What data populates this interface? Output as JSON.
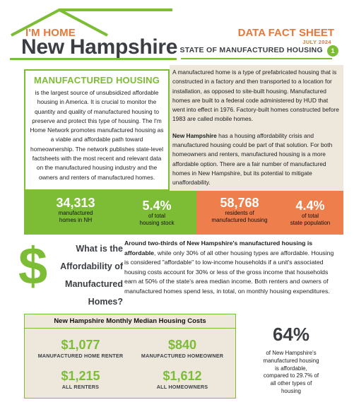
{
  "header": {
    "brand_top": "I'M HOME",
    "brand_main": "New Hampshire",
    "title": "DATA FACT SHEET",
    "date": "JULY 2024",
    "subtitle": "STATE OF MANUFACTURED HOUSING",
    "page_number": "1",
    "colors": {
      "green": "#7cbd35",
      "orange": "#e8783a",
      "dark": "#3b3f44",
      "beige": "#ede7dc"
    }
  },
  "info": {
    "heading": "MANUFACTURED HOUSING",
    "left_text": "is the largest source of unsubsidized affordable housing in America. It is crucial to monitor the quantity and quality of manufactured housing to preserve and protect this type of housing. The I'm Home Network promotes manufactured housing as a viable and affordable path toward homeownership. The network publishes state-level factsheets with the most recent and relevant data on the manufactured housing industry and the owners and renters of manufactured homes.",
    "right_p1": "A manufactured home is a type of prefabricated housing that is constructed in a factory and then transported to a location for installation, as opposed to site-built housing. Manufactured homes are built to a federal code administered by HUD that went into effect in 1976. Factory-built homes constructed before 1983 are called mobile homes.",
    "right_p2_bold": "New Hampshire",
    "right_p2_rest": " has a housing affordability crisis and manufactured housing could be part of that solution. For both homeowners and renters, manufactured housing is a more affordable option. There are a fair number of manufactured homes in New Hampshire, but its potential to mitigate unaffordability."
  },
  "stats": [
    {
      "value": "34,313",
      "label1": "manufactured",
      "label2": "homes in NH"
    },
    {
      "value": "5.4%",
      "label1": "of total",
      "label2": "housing stock"
    },
    {
      "value": "58,768",
      "label1": "residents of",
      "label2": "manufactured housing"
    },
    {
      "value": "4.4%",
      "label1": "of total",
      "label2": "state population"
    }
  ],
  "affordability": {
    "dollar_sign": "$",
    "q_line1": "What is the",
    "q_line2": "Affordability of",
    "q_line3": "Manufactured",
    "q_line4": "Homes?",
    "text_bold": "Around two-thirds of New Hampshire's manufactured housing is affordable",
    "text_rest": ", while only 30% of all other housing types are affordable. Housing is considered \"affordable\" to low-income households if a unit's associated housing costs account for 30% or less of the gross income that households earn at 50% of the state's area median income. Both renters and owners of manufactured homes spend less, in total, on monthly housing expenditures."
  },
  "costs": {
    "title": "New Hampshire Monthly Median Housing Costs",
    "items": [
      {
        "amount": "$1,077",
        "who": "MANUFACTURED HOME RENTER"
      },
      {
        "amount": "$840",
        "who": "MANUFACTURED HOMEOWNER"
      },
      {
        "amount": "$1,215",
        "who": "ALL RENTERS"
      },
      {
        "amount": "$1,612",
        "who": "ALL HOMEOWNERS"
      }
    ]
  },
  "callout": {
    "percent": "64%",
    "line1": "of New Hampshire's",
    "line2": "manufactured housing",
    "line3": "is affordable,",
    "line4": "compared to  29.7% of",
    "line5": "all other types of",
    "line6": "housing"
  }
}
